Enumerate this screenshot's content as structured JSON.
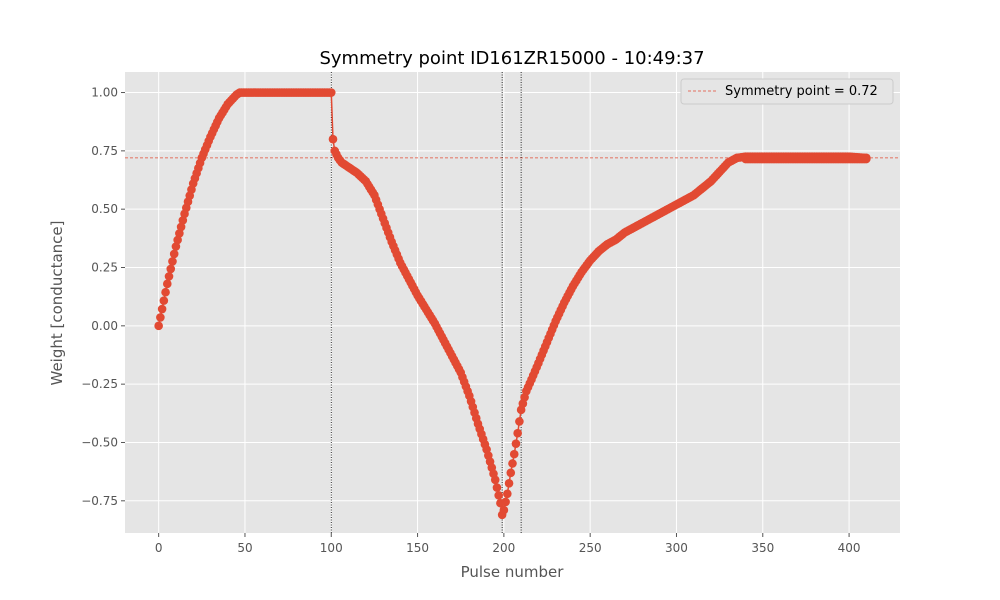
{
  "chart_data": {
    "type": "line",
    "title": "Symmetry point ID161ZR15000 - 10:49:37",
    "xlabel": "Pulse number",
    "ylabel": "Weight [conductance]",
    "xlim": [
      -19.5,
      429.5
    ],
    "ylim": [
      -0.888,
      1.088
    ],
    "xticks": [
      0,
      50,
      100,
      150,
      200,
      250,
      300,
      350,
      400
    ],
    "yticks": [
      -0.75,
      -0.5,
      -0.25,
      0.0,
      0.25,
      0.5,
      0.75,
      1.0
    ],
    "ytick_labels": [
      "−0.75",
      "−0.50",
      "−0.25",
      "0.00",
      "0.25",
      "0.50",
      "0.75",
      "1.00"
    ],
    "grid": true,
    "legend_position": "top-right",
    "series": [
      {
        "name": "weight",
        "color": "#E24A33",
        "marker": "circle",
        "segments": [
          [
            [
              0,
              0.0
            ],
            [
              5,
              0.18
            ],
            [
              10,
              0.34
            ],
            [
              15,
              0.48
            ],
            [
              20,
              0.61
            ],
            [
              25,
              0.72
            ],
            [
              30,
              0.81
            ],
            [
              35,
              0.89
            ],
            [
              40,
              0.95
            ],
            [
              45,
              0.99
            ],
            [
              47,
              1.0
            ],
            [
              100,
              1.0
            ],
            [
              101,
              0.8
            ],
            [
              102,
              0.75
            ],
            [
              104,
              0.72
            ],
            [
              106,
              0.7
            ],
            [
              110,
              0.68
            ],
            [
              115,
              0.655
            ],
            [
              120,
              0.62
            ],
            [
              125,
              0.56
            ],
            [
              130,
              0.46
            ],
            [
              135,
              0.36
            ],
            [
              140,
              0.27
            ],
            [
              145,
              0.2
            ],
            [
              150,
              0.13
            ],
            [
              155,
              0.07
            ],
            [
              160,
              0.01
            ],
            [
              165,
              -0.06
            ],
            [
              170,
              -0.13
            ],
            [
              175,
              -0.2
            ],
            [
              180,
              -0.3
            ],
            [
              185,
              -0.42
            ],
            [
              190,
              -0.53
            ],
            [
              195,
              -0.66
            ],
            [
              198,
              -0.76
            ],
            [
              199,
              -0.81
            ],
            [
              200,
              -0.79
            ],
            [
              202,
              -0.72
            ],
            [
              204,
              -0.63
            ],
            [
              206,
              -0.55
            ],
            [
              208,
              -0.46
            ],
            [
              210,
              -0.36
            ],
            [
              213,
              -0.28
            ],
            [
              216,
              -0.23
            ],
            [
              220,
              -0.16
            ],
            [
              225,
              -0.07
            ],
            [
              230,
              0.02
            ],
            [
              235,
              0.1
            ],
            [
              240,
              0.17
            ],
            [
              245,
              0.23
            ],
            [
              250,
              0.28
            ],
            [
              255,
              0.32
            ],
            [
              260,
              0.35
            ],
            [
              265,
              0.37
            ],
            [
              270,
              0.4
            ],
            [
              275,
              0.42
            ],
            [
              280,
              0.44
            ],
            [
              285,
              0.46
            ],
            [
              290,
              0.48
            ],
            [
              295,
              0.5
            ],
            [
              300,
              0.52
            ],
            [
              305,
              0.54
            ],
            [
              310,
              0.56
            ],
            [
              315,
              0.59
            ],
            [
              320,
              0.62
            ],
            [
              325,
              0.66
            ],
            [
              330,
              0.7
            ],
            [
              335,
              0.72
            ],
            [
              340,
              0.725
            ],
            [
              345,
              0.725
            ],
            [
              350,
              0.725
            ],
            [
              360,
              0.725
            ],
            [
              370,
              0.725
            ],
            [
              380,
              0.725
            ],
            [
              390,
              0.725
            ],
            [
              400,
              0.725
            ],
            [
              410,
              0.72
            ]
          ],
          [
            [
              340,
              0.715
            ],
            [
              350,
              0.715
            ],
            [
              360,
              0.715
            ],
            [
              370,
              0.715
            ],
            [
              380,
              0.715
            ],
            [
              390,
              0.715
            ],
            [
              400,
              0.715
            ],
            [
              410,
              0.715
            ]
          ]
        ]
      }
    ],
    "reference_lines": [
      {
        "orientation": "horizontal",
        "value": 0.72,
        "color": "#E24A33",
        "style": "dashed",
        "label": "Symmetry point = 0.72"
      },
      {
        "orientation": "vertical",
        "value": 100,
        "color": "#000000",
        "style": "dotted"
      },
      {
        "orientation": "vertical",
        "value": 199,
        "color": "#000000",
        "style": "dotted"
      },
      {
        "orientation": "vertical",
        "value": 210,
        "color": "#000000",
        "style": "dotted"
      }
    ],
    "colors": {
      "background": "#E5E5E5",
      "grid": "#FFFFFF",
      "tick_label": "#555555",
      "axis_label": "#555555"
    }
  }
}
